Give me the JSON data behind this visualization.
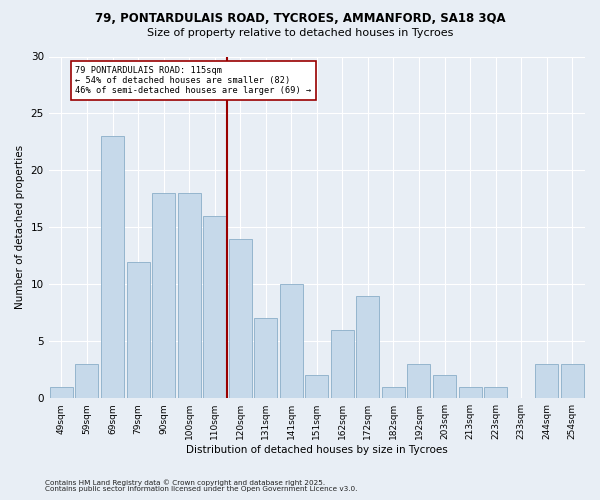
{
  "title1": "79, PONTARDULAIS ROAD, TYCROES, AMMANFORD, SA18 3QA",
  "title2": "Size of property relative to detached houses in Tycroes",
  "xlabel": "Distribution of detached houses by size in Tycroes",
  "ylabel": "Number of detached properties",
  "footnote1": "Contains HM Land Registry data © Crown copyright and database right 2025.",
  "footnote2": "Contains public sector information licensed under the Open Government Licence v3.0.",
  "bar_labels": [
    "49sqm",
    "59sqm",
    "69sqm",
    "79sqm",
    "90sqm",
    "100sqm",
    "110sqm",
    "120sqm",
    "131sqm",
    "141sqm",
    "151sqm",
    "162sqm",
    "172sqm",
    "182sqm",
    "192sqm",
    "203sqm",
    "213sqm",
    "223sqm",
    "233sqm",
    "244sqm",
    "254sqm"
  ],
  "bar_values": [
    1,
    3,
    23,
    12,
    18,
    18,
    16,
    14,
    7,
    10,
    2,
    6,
    9,
    1,
    3,
    2,
    1,
    1,
    0,
    3,
    3
  ],
  "bar_color": "#c6d9ea",
  "bar_edge_color": "#8aaec8",
  "vline_x_index": 6.5,
  "vline_color": "#990000",
  "annotation_title": "79 PONTARDULAIS ROAD: 115sqm",
  "annotation_line1": "← 54% of detached houses are smaller (82)",
  "annotation_line2": "46% of semi-detached houses are larger (69) →",
  "ylim": [
    0,
    30
  ],
  "yticks": [
    0,
    5,
    10,
    15,
    20,
    25,
    30
  ],
  "bg_color": "#e8eef5",
  "grid_color": "#ffffff"
}
